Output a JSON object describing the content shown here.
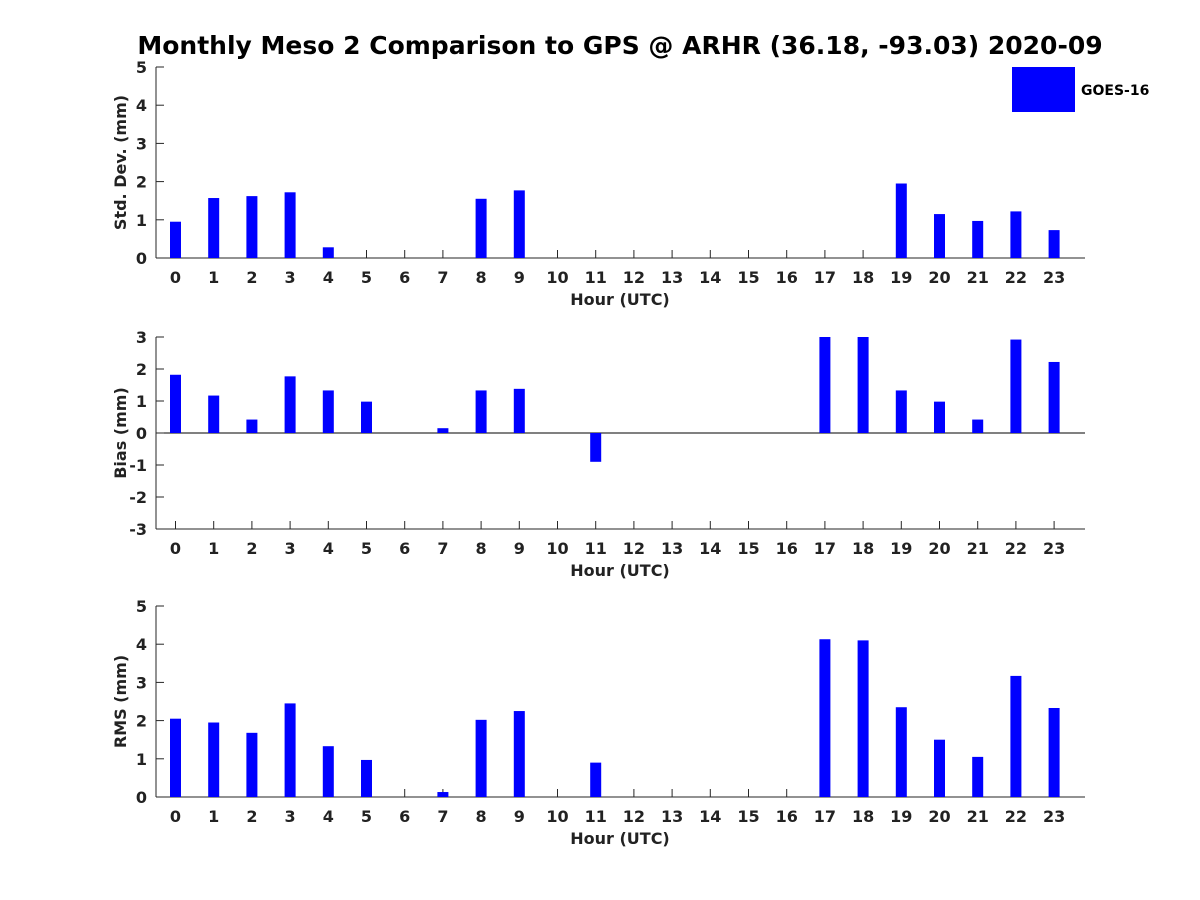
{
  "title": "Monthly Meso 2 Comparison to GPS @ ARHR (36.18, -93.03) 2020-09",
  "legend": {
    "label": "GOES-16",
    "color": "#0000ff"
  },
  "chart_data": [
    {
      "type": "bar",
      "title": "",
      "xlabel": "Hour (UTC)",
      "ylabel": "Std. Dev. (mm)",
      "categories": [
        "0",
        "1",
        "2",
        "3",
        "4",
        "5",
        "6",
        "7",
        "8",
        "9",
        "10",
        "11",
        "12",
        "13",
        "14",
        "15",
        "16",
        "17",
        "18",
        "19",
        "20",
        "21",
        "22",
        "23"
      ],
      "ylim": [
        0,
        5
      ],
      "yticks": [
        0,
        1,
        2,
        3,
        4,
        5
      ],
      "series": [
        {
          "name": "GOES-16",
          "color": "#0000ff",
          "values": [
            0.95,
            1.57,
            1.62,
            1.72,
            0.28,
            0,
            0,
            0,
            1.55,
            1.77,
            0,
            0,
            0,
            0,
            0,
            0,
            0,
            0,
            0,
            1.95,
            1.15,
            0.97,
            1.22,
            0.73
          ]
        }
      ]
    },
    {
      "type": "bar",
      "title": "",
      "xlabel": "Hour (UTC)",
      "ylabel": "Bias (mm)",
      "categories": [
        "0",
        "1",
        "2",
        "3",
        "4",
        "5",
        "6",
        "7",
        "8",
        "9",
        "10",
        "11",
        "12",
        "13",
        "14",
        "15",
        "16",
        "17",
        "18",
        "19",
        "20",
        "21",
        "22",
        "23"
      ],
      "ylim": [
        -3,
        3
      ],
      "yticks": [
        -3,
        -2,
        -1,
        0,
        1,
        2,
        3
      ],
      "series": [
        {
          "name": "GOES-16",
          "color": "#0000ff",
          "values": [
            1.82,
            1.17,
            0.42,
            1.77,
            1.33,
            0.98,
            0,
            0.15,
            1.33,
            1.38,
            0,
            -0.9,
            0,
            0,
            0,
            0,
            0,
            3.0,
            3.0,
            1.33,
            0.98,
            0.42,
            2.92,
            2.22
          ]
        }
      ]
    },
    {
      "type": "bar",
      "title": "",
      "xlabel": "Hour (UTC)",
      "ylabel": "RMS (mm)",
      "categories": [
        "0",
        "1",
        "2",
        "3",
        "4",
        "5",
        "6",
        "7",
        "8",
        "9",
        "10",
        "11",
        "12",
        "13",
        "14",
        "15",
        "16",
        "17",
        "18",
        "19",
        "20",
        "21",
        "22",
        "23"
      ],
      "ylim": [
        0,
        5
      ],
      "yticks": [
        0,
        1,
        2,
        3,
        4,
        5
      ],
      "series": [
        {
          "name": "GOES-16",
          "color": "#0000ff",
          "values": [
            2.05,
            1.95,
            1.68,
            2.45,
            1.33,
            0.97,
            0,
            0.13,
            2.02,
            2.25,
            0,
            0.9,
            0,
            0,
            0,
            0,
            0,
            4.13,
            4.1,
            2.35,
            1.5,
            1.05,
            3.17,
            2.33
          ]
        }
      ]
    }
  ]
}
